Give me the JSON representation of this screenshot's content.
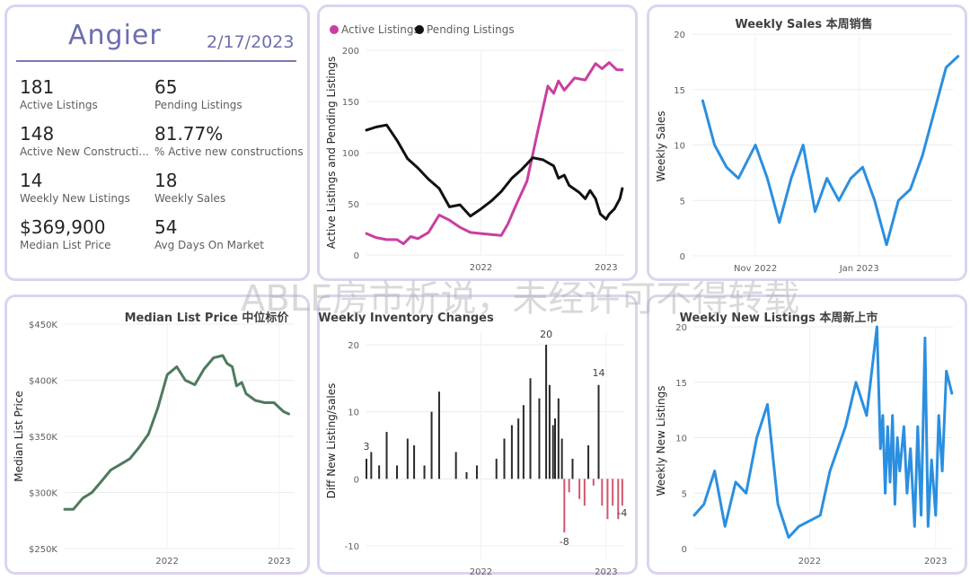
{
  "kpi": {
    "town": "Angier",
    "date": "2/17/2023",
    "items": [
      {
        "value": "181",
        "label": "Active Listings"
      },
      {
        "value": "65",
        "label": "Pending Listings"
      },
      {
        "value": "148",
        "label": "Active New Constructi..."
      },
      {
        "value": "81.77%",
        "label": "% Active new constructions"
      },
      {
        "value": "14",
        "label": "Weekly New Listings"
      },
      {
        "value": "18",
        "label": "Weekly Sales"
      },
      {
        "value": "$369,900",
        "label": "Median List Price"
      },
      {
        "value": "54",
        "label": "Avg Days On Market"
      }
    ]
  },
  "watermark": "ABLE房市析说，未经许可不得转载",
  "colors": {
    "active": "#c93fa0",
    "pending": "#111111",
    "blue": "#2b8fe0",
    "green": "#4f7a5d",
    "bar_pos": "#2a2a2a",
    "bar_neg": "#d2576d"
  },
  "chart_data": [
    {
      "id": "listings",
      "type": "line",
      "title": "",
      "xlabel": "",
      "ylabel": "Active Listings and Pending Listings",
      "ylim": [
        0,
        200
      ],
      "yticks": [
        0,
        50,
        100,
        150,
        200
      ],
      "xlim": [
        "2021-02-01",
        "2023-02-20"
      ],
      "xticks": [
        {
          "x": "2022-01-01",
          "label": "2022"
        },
        {
          "x": "2023-01-01",
          "label": "2023"
        }
      ],
      "legend": "top-left",
      "grid": true,
      "series": [
        {
          "name": "Active Listings",
          "color": "#c93fa0",
          "points": [
            [
              "2021-02-01",
              21
            ],
            [
              "2021-03-01",
              17
            ],
            [
              "2021-04-01",
              15
            ],
            [
              "2021-05-01",
              15
            ],
            [
              "2021-05-20",
              11
            ],
            [
              "2021-06-10",
              18
            ],
            [
              "2021-07-01",
              16
            ],
            [
              "2021-08-01",
              22
            ],
            [
              "2021-09-01",
              39
            ],
            [
              "2021-10-01",
              34
            ],
            [
              "2021-11-01",
              27
            ],
            [
              "2021-12-01",
              22
            ],
            [
              "2022-01-01",
              21
            ],
            [
              "2022-02-01",
              20
            ],
            [
              "2022-03-01",
              19
            ],
            [
              "2022-03-20",
              30
            ],
            [
              "2022-04-15",
              50
            ],
            [
              "2022-05-15",
              72
            ],
            [
              "2022-06-15",
              120
            ],
            [
              "2022-07-15",
              165
            ],
            [
              "2022-08-01",
              158
            ],
            [
              "2022-08-15",
              170
            ],
            [
              "2022-09-01",
              161
            ],
            [
              "2022-10-01",
              173
            ],
            [
              "2022-11-01",
              171
            ],
            [
              "2022-12-01",
              187
            ],
            [
              "2022-12-20",
              182
            ],
            [
              "2023-01-10",
              188
            ],
            [
              "2023-02-01",
              181
            ],
            [
              "2023-02-17",
              181
            ]
          ]
        },
        {
          "name": "Pending Listings",
          "color": "#111111",
          "points": [
            [
              "2021-02-01",
              122
            ],
            [
              "2021-03-01",
              125
            ],
            [
              "2021-04-01",
              127
            ],
            [
              "2021-05-01",
              112
            ],
            [
              "2021-06-01",
              94
            ],
            [
              "2021-07-01",
              85
            ],
            [
              "2021-08-01",
              74
            ],
            [
              "2021-09-01",
              65
            ],
            [
              "2021-10-01",
              47
            ],
            [
              "2021-11-01",
              49
            ],
            [
              "2021-12-01",
              38
            ],
            [
              "2022-01-01",
              45
            ],
            [
              "2022-02-01",
              53
            ],
            [
              "2022-03-01",
              62
            ],
            [
              "2022-04-01",
              75
            ],
            [
              "2022-05-01",
              84
            ],
            [
              "2022-06-01",
              95
            ],
            [
              "2022-07-01",
              93
            ],
            [
              "2022-08-01",
              87
            ],
            [
              "2022-08-15",
              75
            ],
            [
              "2022-09-01",
              78
            ],
            [
              "2022-09-15",
              68
            ],
            [
              "2022-10-15",
              61
            ],
            [
              "2022-11-01",
              55
            ],
            [
              "2022-11-15",
              63
            ],
            [
              "2022-12-01",
              55
            ],
            [
              "2022-12-15",
              40
            ],
            [
              "2023-01-01",
              35
            ],
            [
              "2023-01-10",
              40
            ],
            [
              "2023-01-25",
              45
            ],
            [
              "2023-02-10",
              55
            ],
            [
              "2023-02-17",
              65
            ]
          ]
        }
      ]
    },
    {
      "id": "weekly_sales",
      "type": "line",
      "title": "Weekly Sales 本周销售",
      "xlabel": "",
      "ylabel": "Weekly Sales",
      "ylim": [
        0,
        20
      ],
      "yticks": [
        0,
        5,
        10,
        15,
        20
      ],
      "xlim": [
        "2022-09-25",
        "2023-02-25"
      ],
      "xticks": [
        {
          "x": "2022-11-01",
          "label": "Nov 2022"
        },
        {
          "x": "2023-01-01",
          "label": "Jan 2023"
        }
      ],
      "grid": true,
      "series": [
        {
          "name": "",
          "color": "#2b8fe0",
          "points": [
            [
              "2022-10-01",
              14
            ],
            [
              "2022-10-08",
              10
            ],
            [
              "2022-10-15",
              8
            ],
            [
              "2022-10-22",
              7
            ],
            [
              "2022-11-01",
              10
            ],
            [
              "2022-11-08",
              7
            ],
            [
              "2022-11-15",
              3
            ],
            [
              "2022-11-22",
              7
            ],
            [
              "2022-11-29",
              10
            ],
            [
              "2022-12-06",
              4
            ],
            [
              "2022-12-13",
              7
            ],
            [
              "2022-12-20",
              5
            ],
            [
              "2022-12-27",
              7
            ],
            [
              "2023-01-03",
              8
            ],
            [
              "2023-01-10",
              5
            ],
            [
              "2023-01-17",
              1
            ],
            [
              "2023-01-24",
              5
            ],
            [
              "2023-01-31",
              6
            ],
            [
              "2023-02-07",
              9
            ],
            [
              "2023-02-14",
              13
            ],
            [
              "2023-02-21",
              17
            ],
            [
              "2023-02-28",
              18
            ]
          ]
        }
      ]
    },
    {
      "id": "median_list_price",
      "type": "line",
      "title": "Median List Price 中位标价",
      "xlabel": "",
      "ylabel": "Median List Price",
      "ylim": [
        250000,
        450000
      ],
      "yticks": [
        {
          "v": 250000,
          "label": "$250K"
        },
        {
          "v": 300000,
          "label": "$300K"
        },
        {
          "v": 350000,
          "label": "$350K"
        },
        {
          "v": 400000,
          "label": "$400K"
        },
        {
          "v": 450000,
          "label": "$450K"
        }
      ],
      "xlim": [
        "2021-02-01",
        "2023-02-20"
      ],
      "xticks": [
        {
          "x": "2022-01-01",
          "label": "2022"
        },
        {
          "x": "2023-01-01",
          "label": "2023"
        }
      ],
      "grid": true,
      "series": [
        {
          "name": "",
          "color": "#4f7a5d",
          "points": [
            [
              "2021-02-01",
              285000
            ],
            [
              "2021-03-01",
              285000
            ],
            [
              "2021-04-01",
              295000
            ],
            [
              "2021-05-01",
              300000
            ],
            [
              "2021-06-01",
              310000
            ],
            [
              "2021-07-01",
              320000
            ],
            [
              "2021-08-01",
              325000
            ],
            [
              "2021-09-01",
              330000
            ],
            [
              "2021-10-01",
              340000
            ],
            [
              "2021-11-01",
              352000
            ],
            [
              "2021-12-01",
              375000
            ],
            [
              "2022-01-01",
              405000
            ],
            [
              "2022-02-01",
              412000
            ],
            [
              "2022-03-01",
              400000
            ],
            [
              "2022-04-01",
              396000
            ],
            [
              "2022-05-01",
              410000
            ],
            [
              "2022-06-01",
              420000
            ],
            [
              "2022-07-01",
              422000
            ],
            [
              "2022-07-15",
              415000
            ],
            [
              "2022-08-01",
              412000
            ],
            [
              "2022-08-15",
              395000
            ],
            [
              "2022-09-01",
              398000
            ],
            [
              "2022-09-15",
              388000
            ],
            [
              "2022-10-15",
              382000
            ],
            [
              "2022-11-15",
              380000
            ],
            [
              "2022-12-15",
              380000
            ],
            [
              "2023-01-15",
              372000
            ],
            [
              "2023-02-01",
              370000
            ]
          ]
        }
      ]
    },
    {
      "id": "weekly_inventory_changes",
      "type": "bar",
      "title": "Weekly Inventory Changes",
      "xlabel": "",
      "ylabel": "Diff New Listing/sales",
      "ylim": [
        -12,
        22
      ],
      "yticks": [
        -10,
        0,
        10,
        20
      ],
      "xlim": [
        "2021-02-01",
        "2023-02-20"
      ],
      "xticks": [
        {
          "x": "2022-01-01",
          "label": "2022"
        },
        {
          "x": "2023-01-01",
          "label": "2023"
        }
      ],
      "data_labels": [
        "3",
        "20",
        "14",
        "-8",
        "-4"
      ],
      "grid": true,
      "points": [
        [
          "2021-02-01",
          3
        ],
        [
          "2021-02-15",
          4
        ],
        [
          "2021-03-10",
          2
        ],
        [
          "2021-04-01",
          7
        ],
        [
          "2021-05-01",
          2
        ],
        [
          "2021-06-01",
          6
        ],
        [
          "2021-06-20",
          5
        ],
        [
          "2021-07-20",
          2
        ],
        [
          "2021-08-10",
          10
        ],
        [
          "2021-09-01",
          13
        ],
        [
          "2021-10-20",
          4
        ],
        [
          "2021-11-20",
          1
        ],
        [
          "2021-12-20",
          2
        ],
        [
          "2022-02-15",
          3
        ],
        [
          "2022-03-10",
          6
        ],
        [
          "2022-04-01",
          8
        ],
        [
          "2022-04-20",
          9
        ],
        [
          "2022-05-05",
          11
        ],
        [
          "2022-05-25",
          15
        ],
        [
          "2022-06-20",
          12
        ],
        [
          "2022-07-10",
          20
        ],
        [
          "2022-07-20",
          14
        ],
        [
          "2022-07-30",
          8
        ],
        [
          "2022-08-05",
          9
        ],
        [
          "2022-08-15",
          12
        ],
        [
          "2022-08-25",
          6
        ],
        [
          "2022-09-01",
          -8
        ],
        [
          "2022-09-15",
          -2
        ],
        [
          "2022-09-25",
          3
        ],
        [
          "2022-10-15",
          -3
        ],
        [
          "2022-10-30",
          -4
        ],
        [
          "2022-11-10",
          5
        ],
        [
          "2022-11-25",
          -1
        ],
        [
          "2022-12-10",
          14
        ],
        [
          "2022-12-20",
          -4
        ],
        [
          "2023-01-05",
          -6
        ],
        [
          "2023-01-20",
          -4
        ],
        [
          "2023-02-05",
          -6
        ],
        [
          "2023-02-17",
          -4
        ]
      ]
    },
    {
      "id": "weekly_new_listings",
      "type": "line",
      "title": "Weekly New Listings 本周新上市",
      "xlabel": "",
      "ylabel": "Weekly New Listings",
      "ylim": [
        0,
        20
      ],
      "yticks": [
        0,
        5,
        10,
        15,
        20
      ],
      "xlim": [
        "2021-02-01",
        "2023-02-20"
      ],
      "xticks": [
        {
          "x": "2022-01-01",
          "label": "2022"
        },
        {
          "x": "2023-01-01",
          "label": "2023"
        }
      ],
      "grid": true,
      "series": [
        {
          "name": "",
          "color": "#2b8fe0",
          "points": [
            [
              "2021-02-01",
              3
            ],
            [
              "2021-03-01",
              4
            ],
            [
              "2021-04-01",
              7
            ],
            [
              "2021-05-01",
              2
            ],
            [
              "2021-06-01",
              6
            ],
            [
              "2021-07-01",
              5
            ],
            [
              "2021-08-01",
              10
            ],
            [
              "2021-09-01",
              13
            ],
            [
              "2021-10-01",
              4
            ],
            [
              "2021-11-01",
              1
            ],
            [
              "2021-12-01",
              2
            ],
            [
              "2022-02-01",
              3
            ],
            [
              "2022-03-01",
              7
            ],
            [
              "2022-04-15",
              11
            ],
            [
              "2022-05-15",
              15
            ],
            [
              "2022-06-15",
              12
            ],
            [
              "2022-07-15",
              20
            ],
            [
              "2022-07-25",
              9
            ],
            [
              "2022-08-01",
              12
            ],
            [
              "2022-08-08",
              5
            ],
            [
              "2022-08-15",
              11
            ],
            [
              "2022-08-22",
              6
            ],
            [
              "2022-08-29",
              12
            ],
            [
              "2022-09-05",
              4
            ],
            [
              "2022-09-12",
              10
            ],
            [
              "2022-09-19",
              7
            ],
            [
              "2022-10-01",
              11
            ],
            [
              "2022-10-10",
              5
            ],
            [
              "2022-10-20",
              9
            ],
            [
              "2022-11-01",
              2
            ],
            [
              "2022-11-10",
              11
            ],
            [
              "2022-11-20",
              3
            ],
            [
              "2022-12-01",
              19
            ],
            [
              "2022-12-10",
              2
            ],
            [
              "2022-12-20",
              8
            ],
            [
              "2023-01-01",
              3
            ],
            [
              "2023-01-10",
              12
            ],
            [
              "2023-01-20",
              7
            ],
            [
              "2023-02-01",
              16
            ],
            [
              "2023-02-17",
              14
            ]
          ]
        }
      ]
    }
  ]
}
